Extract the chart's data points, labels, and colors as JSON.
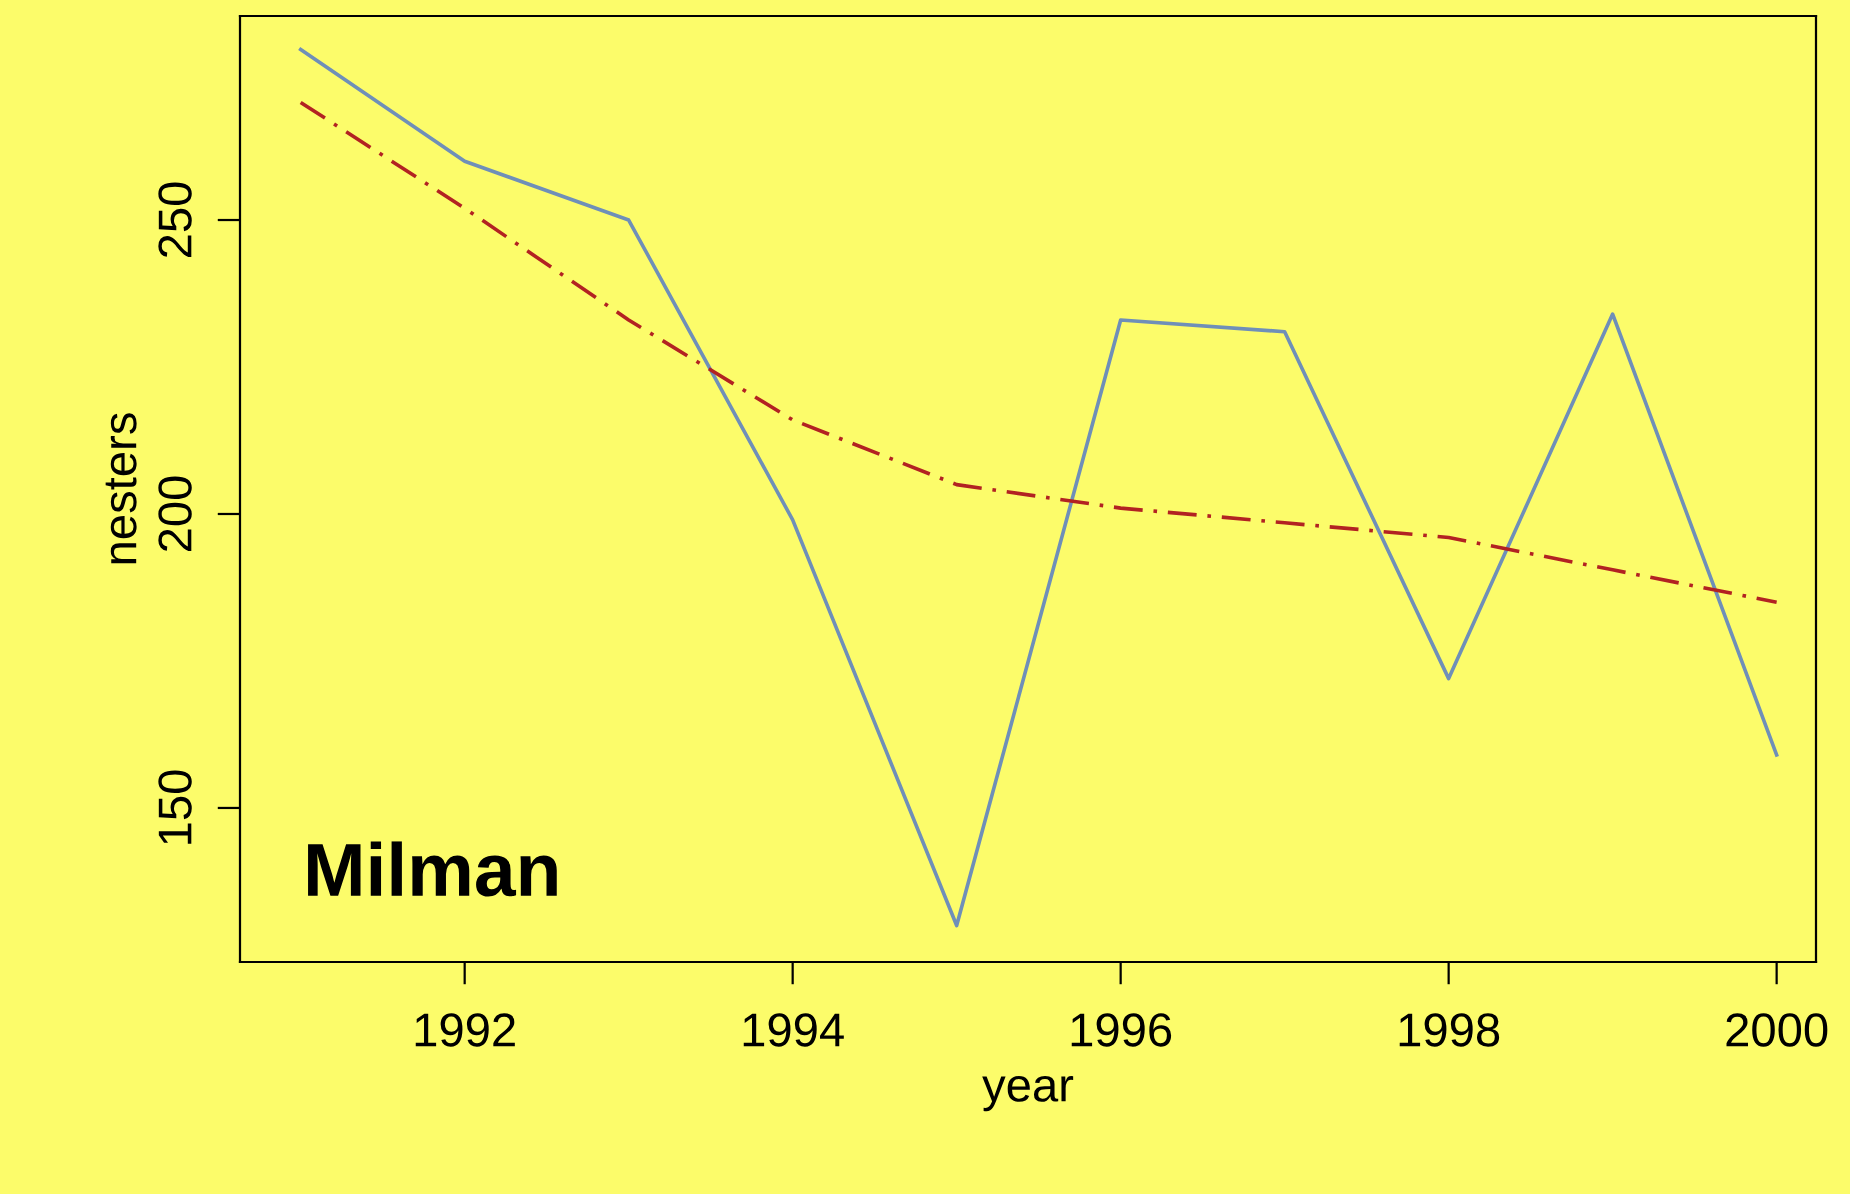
{
  "chart_data": {
    "type": "line",
    "xlabel": "year",
    "ylabel": "nesters",
    "x": [
      1991,
      1992,
      1993,
      1994,
      1995,
      1996,
      1997,
      1998,
      1999,
      2000
    ],
    "series": [
      {
        "color": "#6f8fb8",
        "values": [
          279,
          260,
          250,
          199,
          130,
          233,
          231,
          172,
          234,
          159
        ],
        "line_style": "solid"
      },
      {
        "color": "#b22222",
        "values": [
          270,
          252,
          233,
          216,
          205,
          201,
          198.5,
          196,
          190.5,
          185
        ],
        "line_style": "dashed"
      }
    ],
    "annotations": [
      "Milman"
    ],
    "xlim": [
      1990.63,
      2000.24
    ],
    "ylim": [
      123.8,
      284.7
    ],
    "xticks": [
      1992,
      1994,
      1996,
      1998,
      2000
    ],
    "yticks": [
      150,
      200,
      250
    ],
    "grid": false,
    "legend": false,
    "marker": "none"
  }
}
